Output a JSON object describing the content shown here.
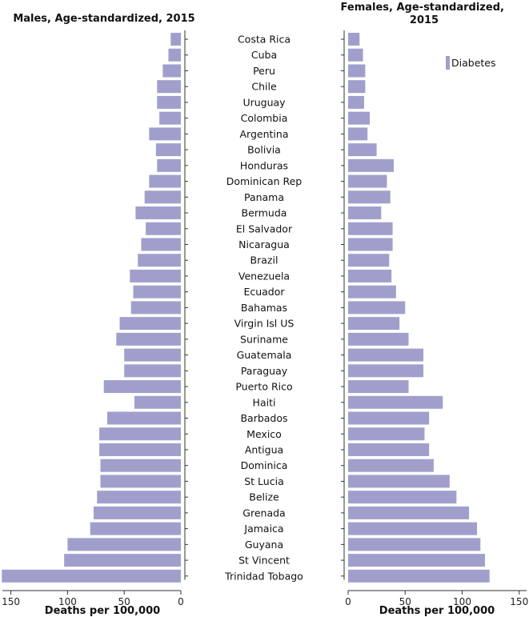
{
  "chart_data": [
    {
      "type": "bar",
      "orientation": "horizontal",
      "mirrored": true,
      "title": "Males, Age-standardized, 2015",
      "xlabel": "Deaths per 100,000",
      "xlim": [
        0,
        155
      ],
      "xticks": [
        0,
        50,
        100,
        150
      ],
      "color": "#a09fcc",
      "categories": [
        "Costa Rica",
        "Cuba",
        "Peru",
        "Chile",
        "Uruguay",
        "Colombia",
        "Argentina",
        "Bolivia",
        "Honduras",
        "Dominican Rep",
        "Panama",
        "Bermuda",
        "El Salvador",
        "Nicaragua",
        "Brazil",
        "Venezuela",
        "Ecuador",
        "Bahamas",
        "Virgin Isl US",
        "Suriname",
        "Guatemala",
        "Paraguay",
        "Puerto Rico",
        "Haiti",
        "Barbados",
        "Mexico",
        "Antigua",
        "Dominica",
        "St Lucia",
        "Belize",
        "Grenada",
        "Jamaica",
        "Guyana",
        "St Vincent",
        "Trinidad Tobago"
      ],
      "values": [
        9,
        11,
        16,
        21,
        21,
        19,
        28,
        22,
        21,
        28,
        32,
        40,
        31,
        35,
        38,
        45,
        42,
        44,
        54,
        57,
        50,
        50,
        68,
        41,
        65,
        72,
        72,
        71,
        71,
        74,
        77,
        80,
        100,
        103,
        158
      ]
    },
    {
      "type": "bar",
      "orientation": "horizontal",
      "title": "Females, Age-standardized, 2015",
      "xlabel": "Deaths per 100,000",
      "xlim": [
        0,
        155
      ],
      "xticks": [
        0,
        50,
        100,
        150
      ],
      "color": "#a09fcc",
      "legend": {
        "entries": [
          "Diabetes"
        ],
        "position": "top-right"
      },
      "categories": [
        "Costa Rica",
        "Cuba",
        "Peru",
        "Chile",
        "Uruguay",
        "Colombia",
        "Argentina",
        "Bolivia",
        "Honduras",
        "Dominican Rep",
        "Panama",
        "Bermuda",
        "El Salvador",
        "Nicaragua",
        "Brazil",
        "Venezuela",
        "Ecuador",
        "Bahamas",
        "Virgin Isl US",
        "Suriname",
        "Guatemala",
        "Paraguay",
        "Puerto Rico",
        "Haiti",
        "Barbados",
        "Mexico",
        "Antigua",
        "Dominica",
        "St Lucia",
        "Belize",
        "Grenada",
        "Jamaica",
        "Guyana",
        "St Vincent",
        "Trinidad Tobago"
      ],
      "values": [
        10,
        13,
        15,
        15,
        14,
        19,
        17,
        25,
        40,
        34,
        37,
        29,
        39,
        39,
        36,
        38,
        42,
        50,
        45,
        53,
        66,
        66,
        53,
        83,
        71,
        67,
        71,
        75,
        89,
        95,
        106,
        113,
        116,
        120,
        124
      ]
    }
  ]
}
